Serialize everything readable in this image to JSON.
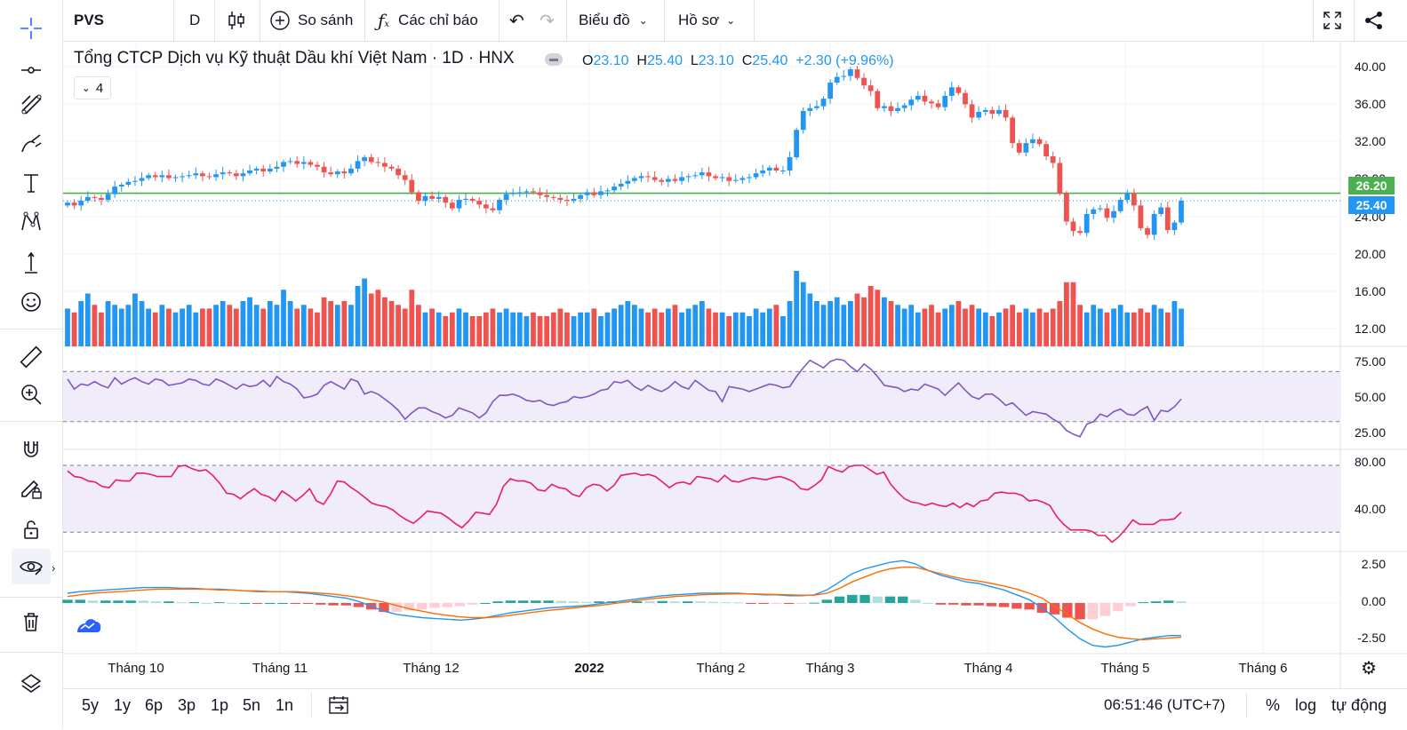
{
  "toolbar": {
    "symbol": "PVS",
    "interval": "D",
    "compare_label": "So sánh",
    "indicators_label": "Các chỉ báo",
    "chart_type_label": "Biểu đồ",
    "profile_label": "Hồ sơ"
  },
  "legend": {
    "title": "Tổng CTCP Dịch vụ Kỹ thuật Dầu khí Việt Nam · 1D · HNX",
    "o_key": "O",
    "o_val": "23.10",
    "h_key": "H",
    "h_val": "25.40",
    "l_key": "L",
    "l_val": "23.10",
    "c_key": "C",
    "c_val": "25.40",
    "change": "+2.30 (+9.96%)",
    "indicator_count": "4"
  },
  "price_axis": [
    "40.00",
    "36.00",
    "32.00",
    "28.00",
    "24.00",
    "20.00",
    "16.00",
    "12.00"
  ],
  "price_tags": {
    "green_line": "26.20",
    "last_price": "25.40"
  },
  "rsi_axis": [
    "75.00",
    "50.00",
    "25.00"
  ],
  "stoch_axis": [
    "80.00",
    "40.00"
  ],
  "macd_axis": [
    "2.50",
    "0.00",
    "-2.50"
  ],
  "time_axis": [
    "Tháng 10",
    "Tháng 11",
    "Tháng 12",
    "2022",
    "Tháng 2",
    "Tháng 3",
    "Tháng 4",
    "Tháng 5",
    "Tháng 6"
  ],
  "ranges": [
    "5y",
    "1y",
    "6p",
    "3p",
    "1p",
    "5n",
    "1n"
  ],
  "clock": "06:51:46 (UTC+7)",
  "axis_options": {
    "percent": "%",
    "log": "log",
    "auto": "tự động"
  },
  "colors": {
    "up": "#2196f3",
    "down": "#ef5350",
    "green_line": "#4caf50",
    "rsi": "#7e57c2",
    "stoch": "#e91e63",
    "macd_fast": "#2196f3",
    "macd_signal": "#ff6d00",
    "hist_up": "#26a69a",
    "hist_down": "#ef5350",
    "band": "#f1ecfa"
  },
  "icons": [
    "crosshair-icon",
    "trendline-icon",
    "fib-icon",
    "brush-icon",
    "text-icon",
    "pattern-icon",
    "measure-icon",
    "emoji-icon",
    "ruler-icon",
    "zoom-icon",
    "magnet-icon",
    "lock-draw-icon",
    "lock-icon",
    "eye-icon",
    "trash-icon",
    "layers-icon"
  ],
  "chart_data": [
    {
      "type": "candlestick",
      "title": "Tổng CTCP Dịch vụ Kỹ thuật Dầu khí Việt Nam · 1D · HNX",
      "ylim": [
        10,
        41
      ],
      "reference_lines": [
        26.2
      ],
      "last_price": 25.4,
      "close": [
        25.2,
        24.9,
        25.4,
        25.8,
        25.7,
        25.5,
        26.1,
        26.9,
        27.1,
        27.4,
        27.5,
        27.8,
        28.1,
        27.9,
        28.1,
        27.8,
        27.9,
        28.0,
        28.1,
        28.3,
        28.0,
        27.9,
        28.2,
        28.4,
        28.3,
        28.0,
        28.3,
        28.6,
        28.8,
        28.5,
        28.8,
        29.0,
        29.5,
        29.6,
        29.3,
        29.5,
        29.2,
        29.0,
        28.4,
        28.2,
        28.5,
        28.3,
        28.8,
        29.6,
        30.0,
        29.5,
        29.4,
        29.0,
        28.8,
        28.1,
        27.6,
        26.3,
        25.4,
        25.9,
        25.6,
        25.8,
        25.2,
        24.6,
        25.5,
        25.6,
        25.4,
        25.0,
        24.6,
        24.4,
        25.5,
        26.1,
        26.2,
        26.3,
        26.4,
        26.3,
        26.0,
        25.8,
        25.7,
        25.5,
        25.4,
        25.6,
        26.0,
        26.3,
        26.0,
        26.4,
        26.5,
        26.9,
        27.2,
        27.5,
        27.8,
        28.0,
        27.9,
        27.6,
        27.4,
        27.7,
        27.5,
        27.9,
        28.0,
        28.1,
        28.4,
        28.0,
        27.8,
        27.9,
        27.5,
        27.6,
        27.8,
        27.9,
        28.3,
        28.6,
        28.9,
        28.6,
        28.6,
        30.0,
        32.9,
        34.9,
        35.2,
        35.4,
        36.2,
        37.9,
        38.5,
        38.6,
        39.3,
        38.4,
        37.6,
        37.0,
        35.2,
        35.4,
        34.9,
        35.2,
        35.5,
        36.1,
        36.5,
        35.9,
        35.7,
        35.3,
        36.5,
        37.4,
        36.8,
        35.6,
        34.2,
        34.8,
        35.0,
        34.6,
        35.0,
        34.2,
        31.5,
        30.5,
        31.5,
        31.9,
        31.4,
        30.1,
        29.4,
        26.2,
        23.2,
        22.2,
        22.0,
        24.0,
        24.5,
        24.6,
        23.6,
        24.3,
        25.5,
        26.2,
        24.9,
        22.5,
        21.8,
        24.0,
        24.7,
        22.3,
        23.1,
        25.4
      ],
      "volume_relative": [
        0.5,
        0.45,
        0.6,
        0.7,
        0.55,
        0.45,
        0.6,
        0.55,
        0.5,
        0.55,
        0.7,
        0.6,
        0.5,
        0.45,
        0.55,
        0.5,
        0.45,
        0.5,
        0.55,
        0.45,
        0.5,
        0.5,
        0.55,
        0.6,
        0.55,
        0.5,
        0.6,
        0.65,
        0.55,
        0.5,
        0.6,
        0.55,
        0.75,
        0.6,
        0.5,
        0.55,
        0.5,
        0.45,
        0.65,
        0.6,
        0.55,
        0.6,
        0.55,
        0.8,
        0.9,
        0.7,
        0.75,
        0.65,
        0.6,
        0.55,
        0.5,
        0.75,
        0.55,
        0.45,
        0.5,
        0.45,
        0.4,
        0.45,
        0.5,
        0.45,
        0.4,
        0.4,
        0.45,
        0.5,
        0.45,
        0.5,
        0.45,
        0.45,
        0.4,
        0.45,
        0.4,
        0.4,
        0.45,
        0.5,
        0.45,
        0.4,
        0.45,
        0.45,
        0.5,
        0.4,
        0.45,
        0.5,
        0.55,
        0.6,
        0.55,
        0.5,
        0.45,
        0.5,
        0.45,
        0.5,
        0.55,
        0.45,
        0.5,
        0.55,
        0.6,
        0.5,
        0.45,
        0.45,
        0.4,
        0.45,
        0.45,
        0.4,
        0.5,
        0.45,
        0.5,
        0.55,
        0.4,
        0.6,
        1.0,
        0.85,
        0.7,
        0.6,
        0.55,
        0.6,
        0.65,
        0.55,
        0.6,
        0.7,
        0.65,
        0.8,
        0.75,
        0.65,
        0.6,
        0.55,
        0.5,
        0.55,
        0.45,
        0.5,
        0.55,
        0.45,
        0.5,
        0.55,
        0.6,
        0.5,
        0.55,
        0.5,
        0.45,
        0.4,
        0.45,
        0.5,
        0.55,
        0.45,
        0.5,
        0.45,
        0.5,
        0.45,
        0.5,
        0.6,
        0.85,
        0.85,
        0.55,
        0.45,
        0.55,
        0.5,
        0.45,
        0.5,
        0.55,
        0.45,
        0.45,
        0.5,
        0.45,
        0.55,
        0.5,
        0.45,
        0.6,
        0.5
      ]
    },
    {
      "type": "line",
      "name": "RSI",
      "ylim": [
        10,
        88
      ],
      "band": [
        30,
        70
      ],
      "values": [
        64,
        56,
        60,
        59,
        62,
        59,
        57,
        65,
        60,
        63,
        65,
        62,
        60,
        64,
        63,
        59,
        60,
        61,
        64,
        63,
        60,
        59,
        64,
        62,
        59,
        56,
        60,
        58,
        59,
        63,
        58,
        66,
        62,
        60,
        56,
        49,
        50,
        52,
        59,
        62,
        59,
        56,
        64,
        62,
        52,
        54,
        52,
        48,
        44,
        39,
        32,
        37,
        41,
        41,
        38,
        36,
        33,
        35,
        41,
        39,
        37,
        33,
        37,
        46,
        51,
        51,
        52,
        50,
        47,
        46,
        47,
        44,
        43,
        45,
        46,
        50,
        49,
        50,
        52,
        55,
        56,
        62,
        61,
        63,
        58,
        55,
        59,
        56,
        54,
        57,
        62,
        58,
        56,
        63,
        59,
        55,
        54,
        46,
        58,
        57,
        56,
        54,
        56,
        58,
        60,
        59,
        57,
        58,
        66,
        73,
        79,
        76,
        73,
        78,
        80,
        79,
        74,
        70,
        76,
        72,
        66,
        59,
        58,
        57,
        54,
        56,
        55,
        60,
        58,
        56,
        51,
        56,
        61,
        55,
        50,
        48,
        52,
        52,
        48,
        43,
        45,
        40,
        35,
        38,
        37,
        36,
        32,
        29,
        23,
        20,
        18,
        28,
        30,
        36,
        34,
        38,
        40,
        36,
        35,
        39,
        42,
        31,
        39,
        38,
        42,
        48
      ]
    },
    {
      "type": "line",
      "name": "Stochastic",
      "ylim": [
        5,
        92
      ],
      "band": [
        20,
        80
      ],
      "values": [
        75,
        70,
        69,
        66,
        65,
        61,
        60,
        67,
        66,
        66,
        73,
        73,
        72,
        70,
        70,
        70,
        79,
        80,
        77,
        75,
        76,
        71,
        64,
        55,
        54,
        50,
        55,
        59,
        54,
        52,
        48,
        57,
        53,
        48,
        53,
        59,
        48,
        45,
        54,
        66,
        65,
        60,
        56,
        51,
        46,
        44,
        43,
        40,
        35,
        31,
        28,
        33,
        39,
        38,
        37,
        33,
        28,
        24,
        30,
        38,
        37,
        36,
        45,
        61,
        68,
        66,
        66,
        64,
        58,
        57,
        63,
        60,
        59,
        54,
        52,
        60,
        63,
        62,
        57,
        62,
        71,
        72,
        73,
        71,
        72,
        70,
        65,
        60,
        64,
        65,
        63,
        70,
        69,
        68,
        65,
        71,
        66,
        65,
        67,
        69,
        68,
        67,
        69,
        70,
        68,
        65,
        59,
        58,
        62,
        67,
        79,
        76,
        74,
        79,
        80,
        80,
        76,
        72,
        74,
        63,
        56,
        50,
        47,
        46,
        44,
        46,
        44,
        43,
        46,
        42,
        46,
        43,
        48,
        49,
        55,
        56,
        55,
        55,
        53,
        48,
        49,
        47,
        44,
        34,
        27,
        22,
        22,
        22,
        21,
        17,
        17,
        11,
        16,
        23,
        31,
        27,
        27,
        27,
        31,
        31,
        32,
        38
      ]
    },
    {
      "type": "line",
      "name": "MACD",
      "ylim": [
        -3.0,
        3.0
      ],
      "series": [
        {
          "values": [
            0.6,
            0.7,
            0.75,
            0.8,
            0.85,
            0.9,
            0.95,
            0.95,
            0.95,
            0.9,
            0.9,
            0.85,
            0.85,
            0.8,
            0.75,
            0.7,
            0.7,
            0.7,
            0.65,
            0.6,
            0.5,
            0.4,
            0.3,
            0.1,
            -0.2,
            -0.5,
            -0.7,
            -0.8,
            -0.9,
            -0.95,
            -1.0,
            -1.05,
            -1.0,
            -0.9,
            -0.75,
            -0.6,
            -0.5,
            -0.4,
            -0.3,
            -0.25,
            -0.2,
            -0.15,
            -0.05,
            0.05,
            0.15,
            0.25,
            0.35,
            0.45,
            0.5,
            0.55,
            0.6,
            0.6,
            0.6,
            0.6,
            0.55,
            0.5,
            0.5,
            0.45,
            0.45,
            0.5,
            0.8,
            1.3,
            1.8,
            2.1,
            2.3,
            2.5,
            2.6,
            2.4,
            2.0,
            1.7,
            1.5,
            1.3,
            1.2,
            1.0,
            0.8,
            0.5,
            0.2,
            -0.3,
            -0.9,
            -1.6,
            -2.2,
            -2.6,
            -2.7,
            -2.6,
            -2.4,
            -2.2,
            -2.1,
            -2.0,
            -2.0
          ]
        },
        {
          "values": [
            0.4,
            0.5,
            0.6,
            0.65,
            0.7,
            0.75,
            0.8,
            0.85,
            0.85,
            0.85,
            0.85,
            0.85,
            0.8,
            0.8,
            0.75,
            0.75,
            0.7,
            0.7,
            0.7,
            0.65,
            0.6,
            0.55,
            0.45,
            0.35,
            0.2,
            0.05,
            -0.15,
            -0.35,
            -0.5,
            -0.65,
            -0.75,
            -0.85,
            -0.9,
            -0.9,
            -0.85,
            -0.75,
            -0.65,
            -0.55,
            -0.45,
            -0.38,
            -0.3,
            -0.22,
            -0.15,
            -0.05,
            0.05,
            0.15,
            0.25,
            0.33,
            0.4,
            0.45,
            0.5,
            0.53,
            0.55,
            0.56,
            0.56,
            0.54,
            0.52,
            0.5,
            0.48,
            0.48,
            0.6,
            0.9,
            1.3,
            1.6,
            1.9,
            2.1,
            2.2,
            2.2,
            2.0,
            1.8,
            1.6,
            1.45,
            1.35,
            1.2,
            1.05,
            0.85,
            0.6,
            0.3,
            -0.2,
            -0.7,
            -1.2,
            -1.6,
            -1.9,
            -2.1,
            -2.2,
            -2.25,
            -2.2,
            -2.15,
            -2.1
          ]
        }
      ]
    }
  ]
}
